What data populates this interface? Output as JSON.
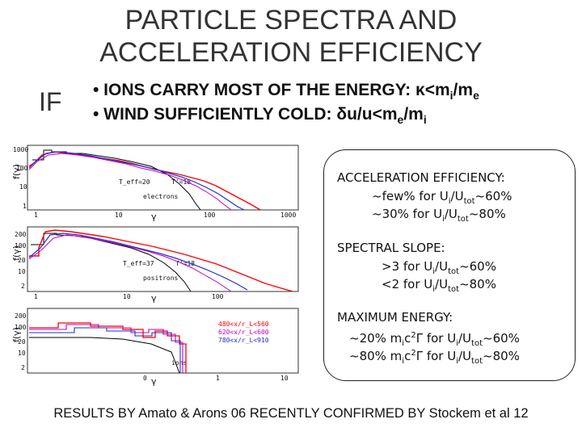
{
  "title": {
    "line1": "PARTICLE SPECTRA AND",
    "line2": "ACCELERATION EFFICIENCY"
  },
  "side_label": "IF",
  "bullets": [
    {
      "prefix": "• IONS CARRY MOST OF THE ENERGY: ",
      "symbol": "κ",
      "rest": "<m",
      "sub1": "i",
      "mid": "/m",
      "sub2": "e"
    },
    {
      "prefix": "• WIND SUFFICIENTLY COLD: ",
      "symbol": "δ",
      "rest": "u/u<m",
      "sub1": "e",
      "mid": "/m",
      "sub2": "i"
    }
  ],
  "panels": [
    {
      "ylabel": "f(γ)",
      "xlabel": "γ",
      "yticks": [
        "1000",
        "100",
        "10",
        "1"
      ],
      "xticks": [
        "1",
        "10",
        "100",
        "1000"
      ],
      "annot_left": "T_eff=20",
      "annot_right": "T'=18",
      "species": "electrons"
    },
    {
      "ylabel": "f(γ)",
      "xlabel": "γ",
      "yticks": [
        "200",
        "100",
        "20",
        "10",
        "2"
      ],
      "xticks": [
        "1",
        "10",
        "100"
      ],
      "annot_left": "T_eff=37",
      "annot_right": "T'=18",
      "species": "positrons"
    },
    {
      "ylabel": "f(γ)",
      "xlabel": "γ",
      "yticks": [
        "200",
        "100",
        "20",
        "10",
        "2"
      ],
      "xticks": [
        "0",
        "1",
        "10"
      ],
      "legend": [
        "480<x/r_L<560",
        "620<x/r_L<600",
        "780<x/r_L<910"
      ],
      "species": "ions"
    }
  ],
  "info_box": {
    "sections": [
      {
        "heading": "ACCELERATION EFFICIENCY:",
        "lines": [
          "~few% for U_i/U_tot~60%",
          "~30% for U_i/U_tot~80%"
        ]
      },
      {
        "heading": "SPECTRAL SLOPE:",
        "lines": [
          ">3 for U_i/U_tot~60%",
          "<2 for U_i/U_tot~80%"
        ]
      },
      {
        "heading": "MAXIMUM ENERGY:",
        "lines": [
          "~20% m_i c^2 Γ for U_i/U_tot~60%",
          "~80% m_i c^2 Γ for U_i/U_tot~80%"
        ]
      }
    ]
  },
  "footer": "RESULTS BY Amato & Arons 06 RECENTLY CONFIRMED BY Stockem et al 12",
  "colors": {
    "red": "#ff0000",
    "blue": "#1f2fd0",
    "magenta": "#c000c0",
    "black": "#000000",
    "title": "#333333"
  }
}
